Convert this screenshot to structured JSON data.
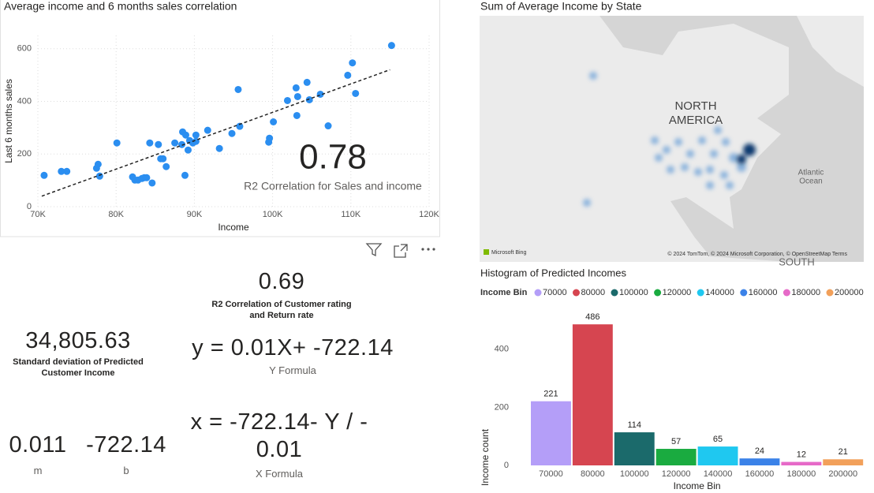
{
  "chart_data": [
    {
      "type": "scatter",
      "title": "Average income and 6 months sales correlation",
      "x_label": "Income",
      "y_label": "Last 6 months sales",
      "color": "#2b8ef0",
      "x": [
        70800,
        73000,
        73700,
        77500,
        77700,
        77900,
        80100,
        82100,
        82400,
        82800,
        83300,
        83600,
        83900,
        84600,
        84300,
        85400,
        85700,
        86000,
        86400,
        87500,
        88500,
        88900,
        88400,
        88800,
        89200,
        89400,
        89800,
        90200,
        90200,
        91700,
        93200,
        94800,
        95600,
        95800,
        99500,
        99600,
        100100,
        101900,
        103000,
        103200,
        103100,
        104400,
        104700,
        106100,
        107100,
        109600,
        110200,
        110600,
        115200
      ],
      "y": [
        119,
        134,
        134,
        146,
        161,
        116,
        242,
        113,
        101,
        101,
        107,
        110,
        110,
        90,
        242,
        236,
        182,
        182,
        152,
        242,
        284,
        272,
        236,
        119,
        215,
        251,
        242,
        272,
        248,
        290,
        221,
        278,
        445,
        305,
        245,
        260,
        322,
        403,
        451,
        418,
        346,
        472,
        406,
        427,
        307,
        499,
        546,
        430,
        612
      ],
      "trendline": {
        "x": [
          70500,
          115000
        ],
        "y": [
          40,
          520
        ]
      },
      "xlim": [
        70000,
        120000
      ],
      "xticks": [
        {
          "value": 70000,
          "label": "70K"
        },
        {
          "value": 80000,
          "label": "80K"
        },
        {
          "value": 90000,
          "label": "90K"
        },
        {
          "value": 100000,
          "label": "100K"
        },
        {
          "value": 110000,
          "label": "110K"
        },
        {
          "value": 120000,
          "label": "120K"
        }
      ],
      "ylim": [
        0,
        650
      ],
      "yticks": [
        0,
        200,
        400,
        600
      ],
      "grid": true,
      "annotation": {
        "value": 0.78,
        "text": "R2 Correlation for Sales and income"
      }
    },
    {
      "type": "map",
      "title": "Sum of Average Income by State",
      "labels": [
        "NORTH",
        "AMERICA",
        "Atlantic",
        "Ocean",
        "SOUTH"
      ],
      "attribution": [
        "Microsoft Bing",
        "© 2024 TomTom, © 2024 Microsoft Corporation, © OpenStreetMap Terms"
      ]
    },
    {
      "type": "bar",
      "title": "Histogram of Predicted Incomes",
      "legend_title": "Income Bin",
      "x_label": "Income Bin",
      "y_label": "Income count",
      "categories": [
        "70000",
        "80000",
        "100000",
        "120000",
        "140000",
        "160000",
        "180000",
        "200000"
      ],
      "values": [
        221,
        486,
        114,
        57,
        65,
        24,
        12,
        21
      ],
      "colors": [
        "#b49ef8",
        "#d64550",
        "#1b6a6b",
        "#1aab40",
        "#1fc8f0",
        "#3b82e8",
        "#e66ac8",
        "#f2a05a"
      ],
      "ylim": [
        0,
        530
      ],
      "yticks": [
        0,
        200,
        400
      ],
      "grid": false
    }
  ],
  "cards": [
    {
      "value": "0.69",
      "caption": "R2 Correlation of Customer rating and Return rate"
    },
    {
      "value": "34,805.63",
      "caption": "Standard deviation of Predicted Customer Income"
    },
    {
      "value": "y = 0.01X+ -722.14",
      "caption": "Y Formula"
    },
    {
      "value": "x = -722.14- Y / - 0.01",
      "caption": "X Formula"
    },
    {
      "value": "0.011",
      "caption": "m"
    },
    {
      "value": "-722.14",
      "caption": "b"
    }
  ]
}
